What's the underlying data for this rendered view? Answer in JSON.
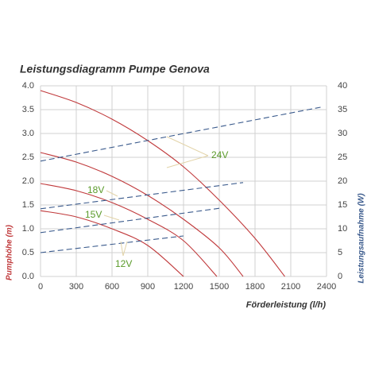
{
  "chart_data": {
    "type": "line",
    "title": "Leistungsdiagramm Pumpe Genova",
    "x_label": "Förderleistung (l/h)",
    "y_label": "Pumphöhe (m)",
    "y2_label": "Leistungsaufnahme (W)",
    "xlim": [
      0,
      2400
    ],
    "xticks": [
      0,
      300,
      600,
      900,
      1200,
      1500,
      1800,
      2100,
      2400
    ],
    "ylim": [
      0,
      4
    ],
    "yticks": [
      {
        "value": 0,
        "label": "0.0"
      },
      {
        "value": 0.5,
        "label": "0.5"
      },
      {
        "value": 1,
        "label": "1.0"
      },
      {
        "value": 1.5,
        "label": "1.5"
      },
      {
        "value": 2,
        "label": "2.0"
      },
      {
        "value": 2.5,
        "label": "2.5"
      },
      {
        "value": 3,
        "label": "3.0"
      },
      {
        "value": 3.5,
        "label": "3.5"
      },
      {
        "value": 4,
        "label": "4.0"
      }
    ],
    "y2lim": [
      0,
      40
    ],
    "y2ticks": [
      0,
      5,
      10,
      15,
      20,
      25,
      30,
      35,
      40
    ],
    "grid": true,
    "series": [
      {
        "name": "24V",
        "color": "#c0393b",
        "x": [
          0,
          300,
          600,
          900,
          1200,
          1500,
          1800,
          2050
        ],
        "values": [
          3.9,
          3.65,
          3.3,
          2.85,
          2.3,
          1.6,
          0.8,
          0
        ]
      },
      {
        "name": "18V",
        "color": "#c0393b",
        "x": [
          0,
          300,
          600,
          900,
          1200,
          1500,
          1700
        ],
        "values": [
          2.6,
          2.4,
          2.1,
          1.7,
          1.2,
          0.6,
          0
        ]
      },
      {
        "name": "15V",
        "color": "#c0393b",
        "x": [
          0,
          300,
          600,
          900,
          1200,
          1480
        ],
        "values": [
          1.95,
          1.8,
          1.55,
          1.2,
          0.75,
          0
        ]
      },
      {
        "name": "12V",
        "color": "#c0393b",
        "x": [
          0,
          300,
          600,
          900,
          1200
        ],
        "values": [
          1.38,
          1.25,
          1.0,
          0.65,
          0
        ]
      },
      {
        "color": "#3a5a8c",
        "axis": "y2",
        "dashed": true,
        "x": [
          0,
          2350
        ],
        "values": [
          24.2,
          35.5
        ]
      },
      {
        "color": "#3a5a8c",
        "axis": "y2",
        "dashed": true,
        "x": [
          0,
          1700
        ],
        "values": [
          14.2,
          19.7
        ]
      },
      {
        "color": "#3a5a8c",
        "axis": "y2",
        "dashed": true,
        "x": [
          0,
          1500
        ],
        "values": [
          9.2,
          14.3
        ]
      },
      {
        "color": "#3a5a8c",
        "axis": "y2",
        "dashed": true,
        "x": [
          0,
          1200
        ],
        "values": [
          5,
          8.5
        ]
      }
    ]
  }
}
